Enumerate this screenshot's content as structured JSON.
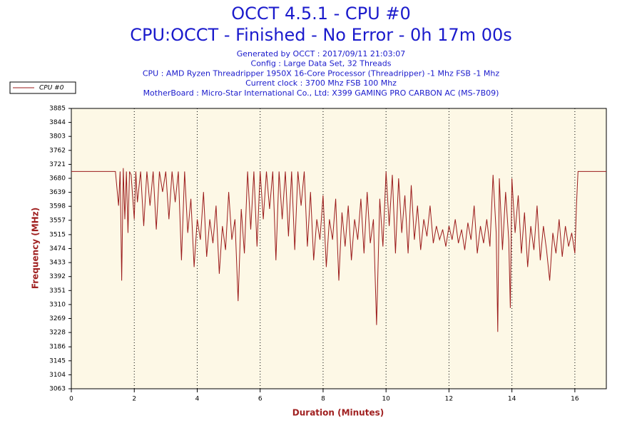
{
  "chart_data": {
    "type": "line",
    "title": "OCCT 4.5.1 - CPU #0",
    "subtitle": "CPU:OCCT - Finished - No Error - 0h 17m 00s",
    "info": [
      "Generated by OCCT : 2017/09/11 21:03:07",
      "Config : Large Data Set, 32 Threads",
      "CPU : AMD Ryzen Threadripper 1950X 16-Core Processor (Threadripper) -1 Mhz FSB -1 Mhz",
      "Current clock : 3700 Mhz FSB 100 Mhz",
      "MotherBoard : Micro-Star International Co., Ltd: X399 GAMING PRO CARBON AC (MS-7B09)"
    ],
    "x_label": "Duration (Minutes)",
    "y_label": "Frequency (MHz)",
    "xlim": [
      0,
      17
    ],
    "xticks": [
      0,
      2,
      4,
      6,
      8,
      10,
      12,
      14,
      16
    ],
    "ylim": [
      3063,
      3885
    ],
    "yticks": [
      3063,
      3104,
      3145,
      3186,
      3228,
      3269,
      3310,
      3351,
      3392,
      3433,
      3474,
      3515,
      3557,
      3598,
      3639,
      3680,
      3721,
      3762,
      3803,
      3844,
      3885
    ],
    "grid": true,
    "legend": "upper left",
    "x": [
      0,
      1.4,
      1.5,
      1.55,
      1.6,
      1.65,
      1.7,
      1.75,
      1.8,
      1.85,
      1.9,
      2.0,
      2.05,
      2.1,
      2.2,
      2.3,
      2.4,
      2.5,
      2.6,
      2.7,
      2.8,
      2.9,
      3.0,
      3.1,
      3.2,
      3.3,
      3.4,
      3.5,
      3.6,
      3.7,
      3.8,
      3.9,
      4.0,
      4.1,
      4.2,
      4.3,
      4.4,
      4.5,
      4.6,
      4.7,
      4.8,
      4.9,
      5.0,
      5.1,
      5.2,
      5.3,
      5.4,
      5.5,
      5.6,
      5.7,
      5.8,
      5.9,
      6.0,
      6.1,
      6.2,
      6.3,
      6.4,
      6.5,
      6.6,
      6.7,
      6.8,
      6.9,
      7.0,
      7.1,
      7.2,
      7.3,
      7.4,
      7.5,
      7.6,
      7.7,
      7.8,
      7.9,
      8.0,
      8.1,
      8.2,
      8.3,
      8.4,
      8.5,
      8.6,
      8.7,
      8.8,
      8.9,
      9.0,
      9.1,
      9.2,
      9.3,
      9.4,
      9.5,
      9.6,
      9.7,
      9.8,
      9.9,
      10.0,
      10.1,
      10.2,
      10.3,
      10.4,
      10.5,
      10.6,
      10.7,
      10.8,
      10.9,
      11.0,
      11.1,
      11.2,
      11.3,
      11.4,
      11.5,
      11.6,
      11.7,
      11.8,
      11.9,
      12.0,
      12.1,
      12.2,
      12.3,
      12.4,
      12.5,
      12.6,
      12.7,
      12.8,
      12.9,
      13.0,
      13.1,
      13.2,
      13.3,
      13.4,
      13.5,
      13.55,
      13.6,
      13.7,
      13.8,
      13.9,
      13.95,
      14.0,
      14.1,
      14.2,
      14.3,
      14.4,
      14.5,
      14.6,
      14.7,
      14.8,
      14.9,
      15.0,
      15.1,
      15.2,
      15.3,
      15.4,
      15.5,
      15.6,
      15.7,
      15.8,
      15.9,
      16.0,
      16.05,
      16.1,
      17
    ],
    "series": [
      {
        "name": "CPU #0",
        "color": "#9b1b1b",
        "values": [
          3700,
          3700,
          3600,
          3700,
          3380,
          3710,
          3560,
          3700,
          3520,
          3700,
          3690,
          3560,
          3700,
          3610,
          3700,
          3540,
          3700,
          3600,
          3700,
          3530,
          3700,
          3640,
          3700,
          3560,
          3700,
          3610,
          3700,
          3440,
          3700,
          3520,
          3620,
          3420,
          3560,
          3500,
          3640,
          3450,
          3560,
          3490,
          3600,
          3400,
          3540,
          3470,
          3640,
          3500,
          3560,
          3320,
          3590,
          3460,
          3700,
          3530,
          3700,
          3480,
          3700,
          3560,
          3700,
          3590,
          3700,
          3440,
          3700,
          3560,
          3700,
          3510,
          3700,
          3470,
          3700,
          3600,
          3700,
          3480,
          3640,
          3440,
          3560,
          3500,
          3630,
          3420,
          3560,
          3500,
          3620,
          3380,
          3580,
          3480,
          3600,
          3440,
          3560,
          3500,
          3620,
          3460,
          3640,
          3490,
          3560,
          3250,
          3620,
          3480,
          3700,
          3540,
          3690,
          3460,
          3680,
          3520,
          3630,
          3460,
          3660,
          3500,
          3600,
          3470,
          3560,
          3510,
          3600,
          3490,
          3540,
          3500,
          3530,
          3480,
          3540,
          3500,
          3560,
          3490,
          3530,
          3470,
          3550,
          3500,
          3600,
          3460,
          3540,
          3490,
          3560,
          3480,
          3690,
          3520,
          3230,
          3680,
          3470,
          3640,
          3500,
          3300,
          3680,
          3520,
          3630,
          3460,
          3580,
          3420,
          3540,
          3470,
          3600,
          3440,
          3540,
          3470,
          3380,
          3520,
          3460,
          3560,
          3450,
          3540,
          3480,
          3520,
          3460,
          3600,
          3700,
          3700
        ]
      }
    ]
  }
}
